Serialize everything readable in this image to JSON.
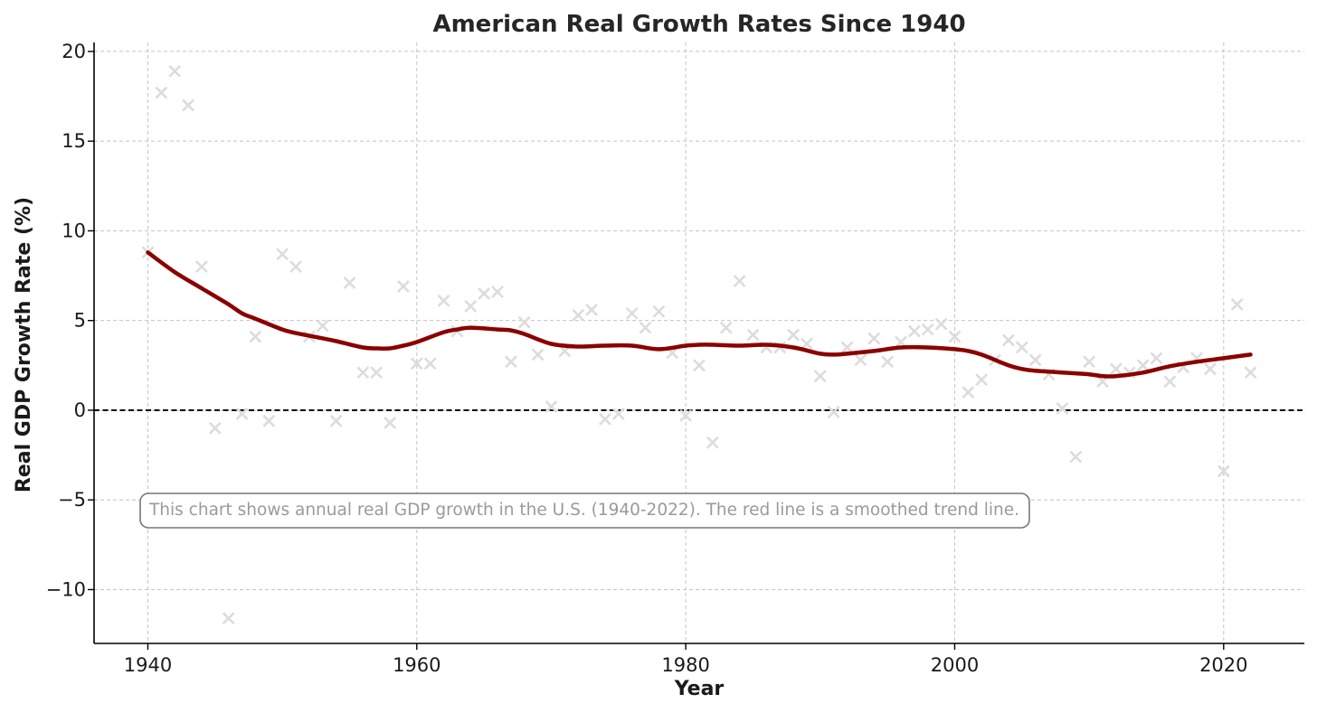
{
  "chart_data": {
    "type": "scatter",
    "title": "American Real Growth Rates Since 1940",
    "xlabel": "Year",
    "ylabel": "Real GDP Growth Rate (%)",
    "xlim": [
      1936,
      2026
    ],
    "ylim": [
      -13.0,
      20.5
    ],
    "xticks": [
      1940,
      1960,
      1980,
      2000,
      2020
    ],
    "yticks": [
      20,
      15,
      10,
      5,
      0,
      -5,
      -10
    ],
    "ytick_labels": [
      "20",
      "15",
      "10",
      "5",
      "0",
      "−5",
      "−10"
    ],
    "grid": true,
    "reference_line": {
      "y": 0,
      "style": "dashed",
      "color": "#000000"
    },
    "marker": "x",
    "marker_color": "#dcdcdc",
    "trend_color": "#8b0000",
    "annotation": {
      "text": "This chart shows annual real GDP growth in the U.S. (1940-2022). The red line is a smoothed trend line.",
      "position": "lower-left"
    },
    "series": [
      {
        "type": "scatter",
        "x": [
          1940,
          1941,
          1942,
          1943,
          1944,
          1945,
          1946,
          1947,
          1948,
          1949,
          1950,
          1951,
          1952,
          1953,
          1954,
          1955,
          1956,
          1957,
          1958,
          1959,
          1960,
          1961,
          1962,
          1963,
          1964,
          1965,
          1966,
          1967,
          1968,
          1969,
          1970,
          1971,
          1972,
          1973,
          1974,
          1975,
          1976,
          1977,
          1978,
          1979,
          1980,
          1981,
          1982,
          1983,
          1984,
          1985,
          1986,
          1987,
          1988,
          1989,
          1990,
          1991,
          1992,
          1993,
          1994,
          1995,
          1996,
          1997,
          1998,
          1999,
          2000,
          2001,
          2002,
          2003,
          2004,
          2005,
          2006,
          2007,
          2008,
          2009,
          2010,
          2011,
          2012,
          2013,
          2014,
          2015,
          2016,
          2017,
          2018,
          2019,
          2020,
          2021,
          2022
        ],
        "y": [
          8.8,
          17.7,
          18.9,
          17.0,
          8.0,
          -1.0,
          -11.6,
          -0.2,
          4.1,
          -0.6,
          8.7,
          8.0,
          4.1,
          4.7,
          -0.6,
          7.1,
          2.1,
          2.1,
          -0.7,
          6.9,
          2.6,
          2.6,
          6.1,
          4.4,
          5.8,
          6.5,
          6.6,
          2.7,
          4.9,
          3.1,
          0.2,
          3.3,
          5.3,
          5.6,
          -0.5,
          -0.2,
          5.4,
          4.6,
          5.5,
          3.2,
          -0.3,
          2.5,
          -1.8,
          4.6,
          7.2,
          4.2,
          3.5,
          3.5,
          4.2,
          3.7,
          1.9,
          -0.1,
          3.5,
          2.8,
          4.0,
          2.7,
          3.8,
          4.4,
          4.5,
          4.8,
          4.1,
          1.0,
          1.7,
          2.8,
          3.9,
          3.5,
          2.8,
          2.0,
          0.1,
          -2.6,
          2.7,
          1.6,
          2.3,
          2.1,
          2.5,
          2.9,
          1.6,
          2.4,
          2.9,
          2.3,
          -3.4,
          5.9,
          2.1
        ]
      },
      {
        "type": "line",
        "x": [
          1940,
          1942,
          1944,
          1946,
          1947,
          1948,
          1950,
          1951,
          1952,
          1954,
          1956,
          1957,
          1958,
          1959,
          1960,
          1962,
          1963,
          1964,
          1966,
          1967,
          1968,
          1970,
          1972,
          1974,
          1976,
          1978,
          1980,
          1981,
          1982,
          1984,
          1986,
          1988,
          1990,
          1991,
          1992,
          1994,
          1996,
          1998,
          2000,
          2001,
          2002,
          2004,
          2005,
          2006,
          2008,
          2010,
          2011,
          2012,
          2014,
          2016,
          2018,
          2020,
          2022
        ],
        "y": [
          8.8,
          7.7,
          6.8,
          5.9,
          5.4,
          5.1,
          4.5,
          4.3,
          4.15,
          3.85,
          3.5,
          3.45,
          3.45,
          3.6,
          3.8,
          4.35,
          4.5,
          4.6,
          4.5,
          4.45,
          4.25,
          3.7,
          3.55,
          3.6,
          3.6,
          3.4,
          3.6,
          3.65,
          3.65,
          3.6,
          3.65,
          3.5,
          3.15,
          3.1,
          3.15,
          3.3,
          3.5,
          3.5,
          3.4,
          3.3,
          3.1,
          2.5,
          2.3,
          2.2,
          2.1,
          2.0,
          1.9,
          1.9,
          2.1,
          2.45,
          2.7,
          2.9,
          3.1
        ]
      }
    ]
  }
}
